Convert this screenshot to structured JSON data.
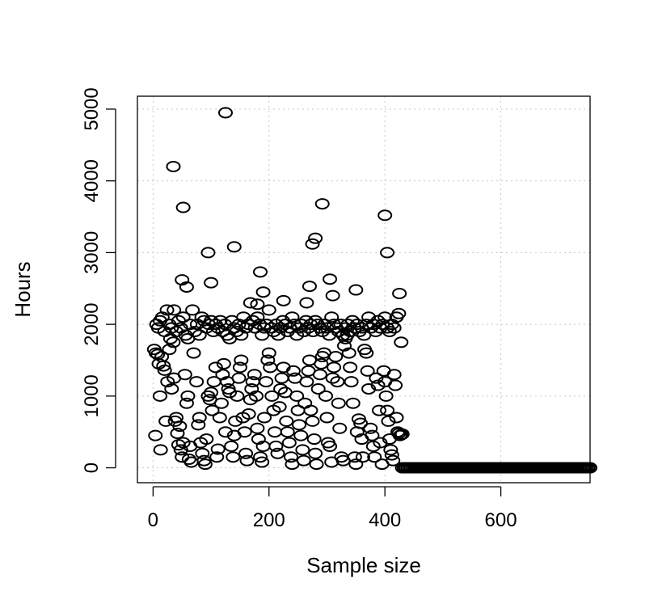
{
  "chart_data": {
    "type": "scatter",
    "xlabel": "Sample size",
    "ylabel": "Hours",
    "xlim": [
      -27,
      754
    ],
    "ylim": [
      -208,
      5180
    ],
    "x_ticks": [
      0,
      200,
      400,
      600
    ],
    "y_ticks": [
      0,
      1000,
      2000,
      3000,
      4000,
      5000
    ],
    "x_tick_labels": [
      "0",
      "200",
      "400",
      "600"
    ],
    "y_tick_labels": [
      "0",
      "1000",
      "2000",
      "3000",
      "4000",
      "5000"
    ],
    "grid": true,
    "series": [
      {
        "marker": "open-circle",
        "color": "#000000",
        "points": [
          [
            2,
            1650
          ],
          [
            5,
            1600
          ],
          [
            8,
            1580
          ],
          [
            10,
            1450
          ],
          [
            12,
            1000
          ],
          [
            15,
            1550
          ],
          [
            18,
            1420
          ],
          [
            20,
            1360
          ],
          [
            4,
            450
          ],
          [
            13,
            250
          ],
          [
            22,
            650
          ],
          [
            25,
            1200
          ],
          [
            28,
            1650
          ],
          [
            30,
            1800
          ],
          [
            32,
            1100
          ],
          [
            35,
            1750
          ],
          [
            36,
            1250
          ],
          [
            38,
            650
          ],
          [
            40,
            700
          ],
          [
            42,
            480
          ],
          [
            44,
            320
          ],
          [
            46,
            580
          ],
          [
            48,
            250
          ],
          [
            50,
            150
          ],
          [
            52,
            350
          ],
          [
            55,
            1300
          ],
          [
            58,
            900
          ],
          [
            60,
            1000
          ],
          [
            62,
            120
          ],
          [
            64,
            300
          ],
          [
            66,
            80
          ],
          [
            70,
            1600
          ],
          [
            75,
            1200
          ],
          [
            78,
            600
          ],
          [
            80,
            700
          ],
          [
            82,
            350
          ],
          [
            85,
            200
          ],
          [
            88,
            100
          ],
          [
            90,
            50
          ],
          [
            92,
            400
          ],
          [
            95,
            1000
          ],
          [
            98,
            950
          ],
          [
            100,
            1050
          ],
          [
            102,
            800
          ],
          [
            105,
            1200
          ],
          [
            108,
            1400
          ],
          [
            110,
            150
          ],
          [
            112,
            260
          ],
          [
            115,
            700
          ],
          [
            118,
            900
          ],
          [
            120,
            1300
          ],
          [
            122,
            1450
          ],
          [
            125,
            500
          ],
          [
            128,
            1200
          ],
          [
            130,
            1100
          ],
          [
            132,
            1050
          ],
          [
            135,
            300
          ],
          [
            138,
            150
          ],
          [
            140,
            450
          ],
          [
            142,
            650
          ],
          [
            145,
            1000
          ],
          [
            148,
            1250
          ],
          [
            150,
            1400
          ],
          [
            152,
            1500
          ],
          [
            155,
            700
          ],
          [
            158,
            500
          ],
          [
            160,
            200
          ],
          [
            162,
            100
          ],
          [
            165,
            750
          ],
          [
            168,
            950
          ],
          [
            170,
            1100
          ],
          [
            172,
            1200
          ],
          [
            175,
            1300
          ],
          [
            178,
            1000
          ],
          [
            180,
            550
          ],
          [
            182,
            400
          ],
          [
            185,
            150
          ],
          [
            188,
            80
          ],
          [
            190,
            300
          ],
          [
            192,
            700
          ],
          [
            195,
            1200
          ],
          [
            198,
            1500
          ],
          [
            200,
            1600
          ],
          [
            202,
            1400
          ],
          [
            205,
            1000
          ],
          [
            208,
            800
          ],
          [
            210,
            500
          ],
          [
            212,
            300
          ],
          [
            215,
            200
          ],
          [
            218,
            850
          ],
          [
            220,
            1100
          ],
          [
            222,
            1250
          ],
          [
            225,
            1400
          ],
          [
            228,
            1050
          ],
          [
            230,
            650
          ],
          [
            232,
            500
          ],
          [
            235,
            350
          ],
          [
            238,
            150
          ],
          [
            240,
            50
          ],
          [
            242,
            1350
          ],
          [
            245,
            1250
          ],
          [
            248,
            1000
          ],
          [
            250,
            800
          ],
          [
            252,
            600
          ],
          [
            255,
            450
          ],
          [
            258,
            250
          ],
          [
            260,
            100
          ],
          [
            262,
            900
          ],
          [
            265,
            1200
          ],
          [
            268,
            1350
          ],
          [
            270,
            1500
          ],
          [
            272,
            800
          ],
          [
            275,
            650
          ],
          [
            278,
            400
          ],
          [
            280,
            200
          ],
          [
            282,
            50
          ],
          [
            285,
            1100
          ],
          [
            288,
            1300
          ],
          [
            290,
            1450
          ],
          [
            292,
            1550
          ],
          [
            295,
            1600
          ],
          [
            298,
            1000
          ],
          [
            300,
            700
          ],
          [
            302,
            350
          ],
          [
            305,
            300
          ],
          [
            308,
            80
          ],
          [
            310,
            1250
          ],
          [
            312,
            1400
          ],
          [
            315,
            1550
          ],
          [
            318,
            1200
          ],
          [
            320,
            900
          ],
          [
            322,
            550
          ],
          [
            325,
            150
          ],
          [
            328,
            100
          ],
          [
            330,
            1700
          ],
          [
            332,
            1800
          ],
          [
            335,
            1850
          ],
          [
            338,
            1600
          ],
          [
            340,
            1400
          ],
          [
            342,
            1200
          ],
          [
            345,
            900
          ],
          [
            348,
            150
          ],
          [
            350,
            50
          ],
          [
            352,
            500
          ],
          [
            355,
            680
          ],
          [
            358,
            620
          ],
          [
            360,
            400
          ],
          [
            362,
            150
          ],
          [
            365,
            1650
          ],
          [
            368,
            1600
          ],
          [
            370,
            1350
          ],
          [
            372,
            1100
          ],
          [
            375,
            550
          ],
          [
            378,
            450
          ],
          [
            380,
            300
          ],
          [
            382,
            150
          ],
          [
            385,
            1250
          ],
          [
            388,
            1150
          ],
          [
            390,
            800
          ],
          [
            392,
            350
          ],
          [
            395,
            50
          ],
          [
            398,
            1350
          ],
          [
            400,
            1200
          ],
          [
            402,
            1000
          ],
          [
            404,
            800
          ],
          [
            406,
            650
          ],
          [
            408,
            400
          ],
          [
            410,
            250
          ],
          [
            412,
            180
          ],
          [
            414,
            100
          ],
          [
            416,
            1300
          ],
          [
            418,
            1150
          ],
          [
            420,
            700
          ],
          [
            422,
            500
          ],
          [
            424,
            480
          ],
          [
            426,
            450
          ],
          [
            428,
            460
          ],
          [
            430,
            470
          ],
          [
            6,
            2000
          ],
          [
            9,
            1950
          ],
          [
            12,
            2050
          ],
          [
            16,
            2100
          ],
          [
            20,
            1900
          ],
          [
            24,
            2200
          ],
          [
            28,
            2000
          ],
          [
            32,
            1950
          ],
          [
            36,
            2200
          ],
          [
            40,
            1900
          ],
          [
            44,
            2050
          ],
          [
            48,
            1950
          ],
          [
            52,
            2100
          ],
          [
            56,
            1850
          ],
          [
            60,
            1800
          ],
          [
            64,
            2000
          ],
          [
            68,
            2200
          ],
          [
            72,
            1900
          ],
          [
            76,
            2000
          ],
          [
            80,
            1850
          ],
          [
            84,
            2100
          ],
          [
            88,
            2050
          ],
          [
            92,
            1950
          ],
          [
            96,
            2000
          ],
          [
            100,
            2050
          ],
          [
            104,
            1900
          ],
          [
            108,
            2000
          ],
          [
            112,
            1950
          ],
          [
            116,
            2050
          ],
          [
            120,
            1900
          ],
          [
            124,
            2000
          ],
          [
            128,
            1850
          ],
          [
            132,
            1800
          ],
          [
            136,
            2050
          ],
          [
            140,
            1950
          ],
          [
            144,
            1900
          ],
          [
            148,
            2000
          ],
          [
            152,
            1850
          ],
          [
            156,
            2100
          ],
          [
            160,
            1950
          ],
          [
            164,
            2000
          ],
          [
            168,
            2300
          ],
          [
            172,
            2050
          ],
          [
            176,
            1950
          ],
          [
            180,
            2100
          ],
          [
            184,
            2000
          ],
          [
            188,
            1850
          ],
          [
            192,
            1950
          ],
          [
            196,
            2000
          ],
          [
            200,
            2200
          ],
          [
            204,
            1950
          ],
          [
            208,
            1900
          ],
          [
            212,
            2000
          ],
          [
            216,
            1850
          ],
          [
            220,
            1950
          ],
          [
            224,
            2050
          ],
          [
            228,
            2000
          ],
          [
            232,
            1900
          ],
          [
            236,
            1950
          ],
          [
            240,
            2100
          ],
          [
            244,
            2000
          ],
          [
            248,
            1850
          ],
          [
            252,
            1950
          ],
          [
            256,
            2000
          ],
          [
            260,
            1900
          ],
          [
            264,
            2050
          ],
          [
            268,
            1950
          ],
          [
            272,
            2000
          ],
          [
            276,
            1900
          ],
          [
            280,
            2050
          ],
          [
            284,
            2000
          ],
          [
            288,
            1950
          ],
          [
            292,
            1900
          ],
          [
            296,
            2000
          ],
          [
            300,
            1950
          ],
          [
            304,
            1850
          ],
          [
            308,
            2100
          ],
          [
            312,
            2000
          ],
          [
            316,
            1950
          ],
          [
            320,
            1900
          ],
          [
            324,
            2000
          ],
          [
            328,
            1850
          ],
          [
            332,
            1950
          ],
          [
            336,
            2000
          ],
          [
            340,
            1900
          ],
          [
            344,
            2050
          ],
          [
            348,
            1950
          ],
          [
            352,
            2000
          ],
          [
            356,
            1900
          ],
          [
            360,
            1950
          ],
          [
            364,
            1850
          ],
          [
            368,
            2000
          ],
          [
            372,
            2100
          ],
          [
            376,
            1950
          ],
          [
            380,
            2000
          ],
          [
            384,
            1900
          ],
          [
            388,
            2050
          ],
          [
            392,
            1950
          ],
          [
            396,
            2000
          ],
          [
            400,
            2100
          ],
          [
            404,
            1950
          ],
          [
            408,
            1900
          ],
          [
            412,
            2000
          ],
          [
            416,
            1950
          ],
          [
            420,
            2100
          ],
          [
            424,
            2150
          ],
          [
            428,
            1750
          ],
          [
            35,
            4200
          ],
          [
            52,
            3630
          ],
          [
            125,
            4950
          ],
          [
            95,
            3000
          ],
          [
            140,
            3080
          ],
          [
            275,
            3120
          ],
          [
            280,
            3200
          ],
          [
            292,
            3680
          ],
          [
            400,
            3520
          ],
          [
            404,
            3000
          ],
          [
            50,
            2620
          ],
          [
            58,
            2520
          ],
          [
            100,
            2580
          ],
          [
            185,
            2730
          ],
          [
            190,
            2450
          ],
          [
            225,
            2330
          ],
          [
            270,
            2530
          ],
          [
            305,
            2630
          ],
          [
            350,
            2480
          ],
          [
            425,
            2430
          ],
          [
            265,
            2300
          ],
          [
            310,
            2400
          ],
          [
            180,
            2280
          ]
        ]
      },
      {
        "marker": "open-circle",
        "color": "#000000",
        "x_range": [
          430,
          755
        ],
        "x_step": 3,
        "y_constant": 0
      }
    ]
  }
}
